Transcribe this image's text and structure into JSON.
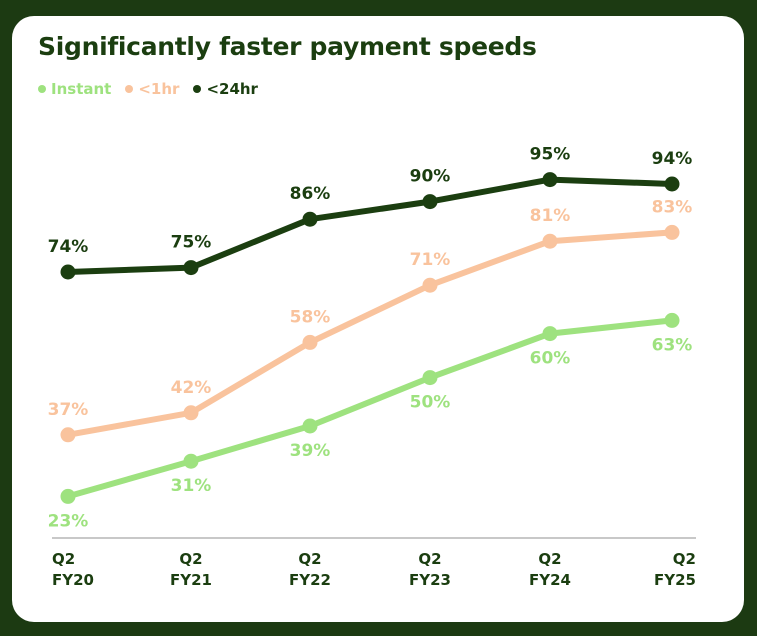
{
  "chart_data": {
    "type": "line",
    "title": "Significantly faster payment speeds",
    "categories": [
      [
        "Q2",
        "FY20"
      ],
      [
        "Q2",
        "FY21"
      ],
      [
        "Q2",
        "FY22"
      ],
      [
        "Q2",
        "FY23"
      ],
      [
        "Q2",
        "FY24"
      ],
      [
        "Q2",
        "FY25"
      ]
    ],
    "series": [
      {
        "name": "Instant",
        "color": "#9ee27f",
        "values": [
          23,
          31,
          39,
          50,
          60,
          63
        ],
        "labels": [
          "23%",
          "31%",
          "39%",
          "50%",
          "60%",
          "63%"
        ],
        "label_position": "below"
      },
      {
        "name": "<1hr",
        "color": "#f9c39d",
        "values": [
          37,
          42,
          58,
          71,
          81,
          83
        ],
        "labels": [
          "37%",
          "42%",
          "58%",
          "71%",
          "81%",
          "83%"
        ],
        "label_position": "above"
      },
      {
        "name": "<24hr",
        "color": "#1b3e10",
        "values": [
          74,
          75,
          86,
          90,
          95,
          94
        ],
        "labels": [
          "74%",
          "75%",
          "86%",
          "90%",
          "95%",
          "94%"
        ],
        "label_position": "above"
      }
    ],
    "grid": false,
    "legend_position": "top-left",
    "xlabel": "",
    "ylabel": ""
  }
}
